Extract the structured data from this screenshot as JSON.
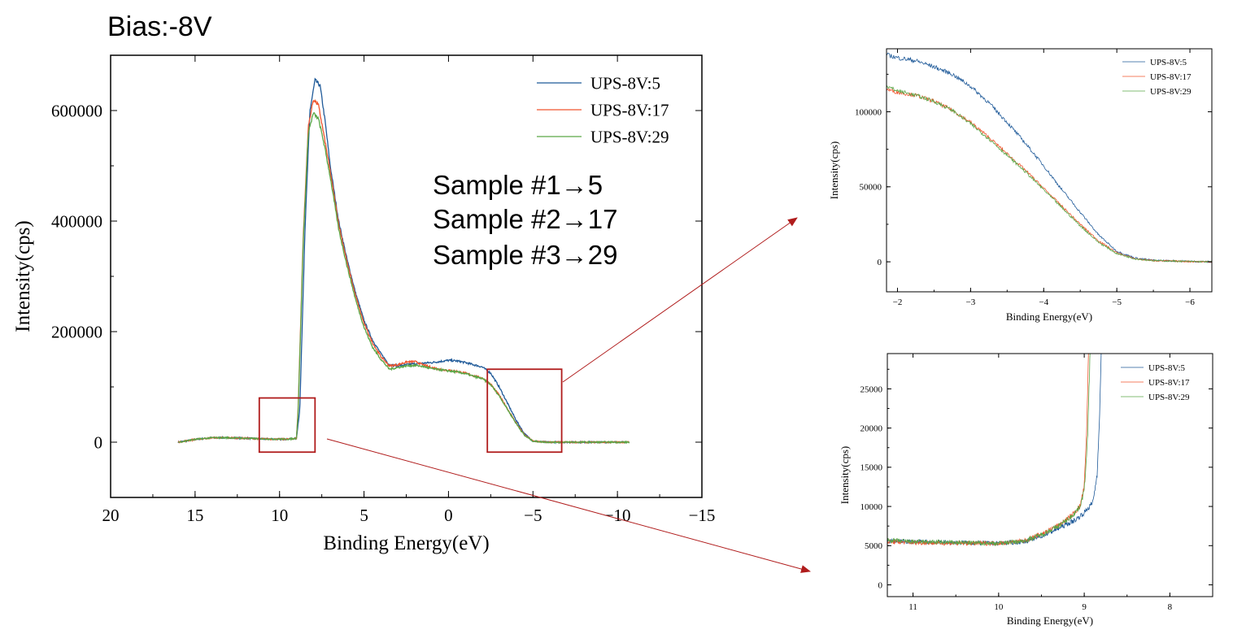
{
  "page_title": "Bias:-8V",
  "annotations": {
    "lines": [
      "Sample #1→5",
      "Sample #2→17",
      "Sample #3→29"
    ]
  },
  "colors": {
    "series_5": "#1f5a99",
    "series_17": "#f0552d",
    "series_29": "#5aa646",
    "highlight_box": "#b01c1c",
    "arrow": "#b01c1c"
  },
  "chart_data": [
    {
      "type": "line",
      "title": "",
      "xlabel": "Binding Energy(eV)",
      "ylabel": "Intensity(cps)",
      "xlim": [
        20,
        -15
      ],
      "ylim": [
        -100000,
        700000
      ],
      "x_reversed": true,
      "x_ticks": [
        20,
        15,
        10,
        5,
        0,
        -5,
        -10,
        -15
      ],
      "x_tick_labels": [
        "20",
        "15",
        "10",
        "5",
        "0",
        "−5",
        "−10",
        "−15"
      ],
      "y_ticks": [
        0,
        200000,
        400000,
        600000
      ],
      "y_tick_labels": [
        "0",
        "200000",
        "400000",
        "600000"
      ],
      "legend_position": "top-right",
      "grid": false,
      "series": [
        {
          "name": "UPS-8V:5",
          "color": "#1f5a99",
          "x": [
            16,
            15,
            14,
            13,
            12,
            11,
            10,
            9.5,
            9,
            8.8,
            8.5,
            8.2,
            7.9,
            7.6,
            7.3,
            7,
            6.5,
            6,
            5.5,
            5,
            4.5,
            4,
            3.5,
            3,
            2.5,
            2,
            1.5,
            1,
            0.5,
            0,
            -0.5,
            -1,
            -1.5,
            -2,
            -2.5,
            -3,
            -3.5,
            -4,
            -4.5,
            -5,
            -5.5,
            -6,
            -7,
            -8,
            -9,
            -10,
            -10.7
          ],
          "y": [
            0,
            5000,
            8000,
            8000,
            7000,
            6000,
            5500,
            5500,
            7000,
            60000,
            380000,
            600000,
            655000,
            645000,
            580000,
            500000,
            400000,
            330000,
            270000,
            220000,
            185000,
            160000,
            140000,
            138000,
            140000,
            142000,
            143000,
            144000,
            146000,
            148000,
            147000,
            144000,
            140000,
            136000,
            125000,
            100000,
            70000,
            40000,
            15000,
            2000,
            500,
            0,
            0,
            0,
            0,
            0,
            0
          ]
        },
        {
          "name": "UPS-8V:17",
          "color": "#f0552d",
          "x": [
            16,
            15,
            14,
            13,
            12,
            11,
            10,
            9.5,
            9,
            8.9,
            8.6,
            8.3,
            8,
            7.7,
            7.4,
            7,
            6.5,
            6,
            5.5,
            5,
            4.5,
            4,
            3.5,
            3,
            2.5,
            2,
            1.5,
            1,
            0.5,
            0,
            -0.5,
            -1,
            -1.5,
            -2,
            -2.5,
            -3,
            -3.5,
            -4,
            -4.5,
            -5,
            -5.5,
            -6,
            -7,
            -8,
            -9,
            -10,
            -10.7
          ],
          "y": [
            0,
            5000,
            8000,
            8000,
            7000,
            6000,
            5500,
            5500,
            7000,
            60000,
            370000,
            570000,
            620000,
            610000,
            560000,
            490000,
            395000,
            325000,
            265000,
            215000,
            180000,
            155000,
            138000,
            140000,
            145000,
            146000,
            140000,
            135000,
            132000,
            130000,
            128000,
            125000,
            120000,
            116000,
            105000,
            85000,
            60000,
            35000,
            13000,
            2000,
            500,
            0,
            0,
            0,
            0,
            0,
            0
          ]
        },
        {
          "name": "UPS-8V:29",
          "color": "#5aa646",
          "x": [
            16,
            15,
            14,
            13,
            12,
            11,
            10,
            9.5,
            9,
            8.9,
            8.6,
            8.3,
            8,
            7.7,
            7.4,
            7,
            6.5,
            6,
            5.5,
            5,
            4.5,
            4,
            3.5,
            3,
            2.5,
            2,
            1.5,
            1,
            0.5,
            0,
            -0.5,
            -1,
            -1.5,
            -2,
            -2.5,
            -3,
            -3.5,
            -4,
            -4.5,
            -5,
            -5.5,
            -6,
            -7,
            -8,
            -9,
            -10,
            -10.7
          ],
          "y": [
            0,
            5000,
            8000,
            8000,
            7000,
            6000,
            5500,
            5500,
            7000,
            55000,
            360000,
            560000,
            595000,
            585000,
            545000,
            480000,
            385000,
            318000,
            258000,
            208000,
            172000,
            150000,
            132000,
            135000,
            138000,
            139000,
            137000,
            133000,
            131000,
            129000,
            127000,
            124000,
            119000,
            115000,
            104000,
            84000,
            59000,
            34000,
            12000,
            2000,
            500,
            0,
            0,
            0,
            0,
            0,
            0
          ]
        }
      ],
      "highlight_regions": [
        {
          "x_range": [
            11.2,
            7.9
          ],
          "y_range": [
            -18000,
            80000
          ]
        },
        {
          "x_range": [
            -2.3,
            -6.7
          ],
          "y_range": [
            -18000,
            132000
          ]
        }
      ]
    },
    {
      "type": "line",
      "title": "",
      "xlabel": "Binding Energy(eV)",
      "ylabel": "Intensity(cps)",
      "xlim": [
        -1.85,
        -6.3
      ],
      "ylim": [
        -20000,
        142000
      ],
      "x_reversed": true,
      "x_ticks": [
        -2,
        -3,
        -4,
        -5,
        -6
      ],
      "x_tick_labels": [
        "−2",
        "−3",
        "−4",
        "−5",
        "−6"
      ],
      "y_ticks": [
        0,
        50000,
        100000
      ],
      "y_tick_labels": [
        "0",
        "50000",
        "100000"
      ],
      "legend_position": "top-right",
      "grid": false,
      "series": [
        {
          "name": "UPS-8V:5",
          "color": "#1f5a99",
          "x": [
            -1.85,
            -2,
            -2.25,
            -2.5,
            -2.75,
            -3,
            -3.25,
            -3.5,
            -3.75,
            -4,
            -4.25,
            -4.5,
            -4.75,
            -5,
            -5.25,
            -5.5,
            -6,
            -6.3
          ],
          "y": [
            138000,
            136000,
            134000,
            130000,
            125000,
            117000,
            106000,
            93000,
            79000,
            64000,
            48000,
            33000,
            18000,
            7000,
            2500,
            1000,
            300,
            0
          ]
        },
        {
          "name": "UPS-8V:17",
          "color": "#f0552d",
          "x": [
            -1.85,
            -2,
            -2.25,
            -2.5,
            -2.75,
            -3,
            -3.25,
            -3.5,
            -3.75,
            -4,
            -4.25,
            -4.5,
            -4.75,
            -5,
            -5.25,
            -5.5,
            -6,
            -6.3
          ],
          "y": [
            115000,
            113000,
            111000,
            107000,
            101000,
            93000,
            83000,
            72000,
            61000,
            49000,
            37000,
            25000,
            14000,
            6000,
            2000,
            800,
            200,
            0
          ]
        },
        {
          "name": "UPS-8V:29",
          "color": "#5aa646",
          "x": [
            -1.85,
            -2,
            -2.25,
            -2.5,
            -2.75,
            -3,
            -3.25,
            -3.5,
            -3.75,
            -4,
            -4.25,
            -4.5,
            -4.75,
            -5,
            -5.25,
            -5.5,
            -6,
            -6.3
          ],
          "y": [
            117000,
            114000,
            111000,
            107000,
            101000,
            92000,
            82000,
            71000,
            60000,
            48000,
            36000,
            24000,
            13000,
            5500,
            2000,
            800,
            200,
            0
          ]
        }
      ]
    },
    {
      "type": "line",
      "title": "",
      "xlabel": "Binding Energy(eV)",
      "ylabel": "Intensity(cps)",
      "xlim": [
        11.3,
        7.5
      ],
      "ylim": [
        -1500,
        29500
      ],
      "x_reversed": true,
      "x_ticks": [
        11,
        10,
        9,
        8
      ],
      "x_tick_labels": [
        "11",
        "10",
        "9",
        "8"
      ],
      "y_ticks": [
        0,
        5000,
        10000,
        15000,
        20000,
        25000
      ],
      "y_tick_labels": [
        "0",
        "5000",
        "10000",
        "15000",
        "20000",
        "25000"
      ],
      "legend_position": "top-right",
      "grid": false,
      "series": [
        {
          "name": "UPS-8V:5",
          "color": "#1f5a99",
          "x": [
            11.3,
            11,
            10.5,
            10,
            9.7,
            9.5,
            9.3,
            9.1,
            9,
            8.9,
            8.85,
            8.82,
            8.8
          ],
          "y": [
            5600,
            5500,
            5400,
            5300,
            5500,
            6200,
            7200,
            8300,
            9200,
            10500,
            14000,
            22000,
            30000
          ]
        },
        {
          "name": "UPS-8V:17",
          "color": "#f0552d",
          "x": [
            11.3,
            11,
            10.5,
            10,
            9.7,
            9.5,
            9.3,
            9.15,
            9.05,
            9,
            8.97,
            8.95
          ],
          "y": [
            5500,
            5400,
            5300,
            5300,
            5600,
            6500,
            7600,
            8800,
            10000,
            12500,
            20000,
            30000
          ]
        },
        {
          "name": "UPS-8V:29",
          "color": "#5aa646",
          "x": [
            11.3,
            11,
            10.5,
            10,
            9.7,
            9.5,
            9.3,
            9.15,
            9.05,
            9,
            8.96,
            8.93
          ],
          "y": [
            5700,
            5500,
            5400,
            5300,
            5600,
            6400,
            7500,
            8700,
            10000,
            12000,
            19000,
            30000
          ]
        }
      ]
    }
  ]
}
